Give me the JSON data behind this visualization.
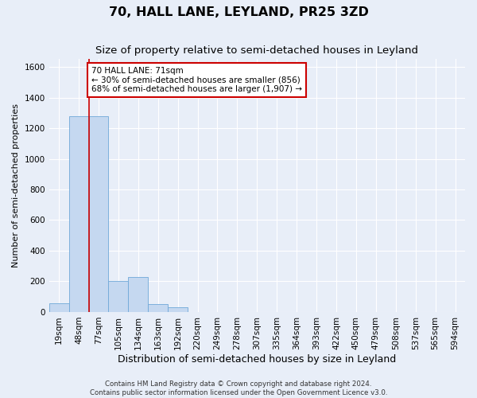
{
  "title": "70, HALL LANE, LEYLAND, PR25 3ZD",
  "subtitle": "Size of property relative to semi-detached houses in Leyland",
  "xlabel": "Distribution of semi-detached houses by size in Leyland",
  "ylabel": "Number of semi-detached properties",
  "footer_line1": "Contains HM Land Registry data © Crown copyright and database right 2024.",
  "footer_line2": "Contains public sector information licensed under the Open Government Licence v3.0.",
  "bin_labels": [
    "19sqm",
    "48sqm",
    "77sqm",
    "105sqm",
    "134sqm",
    "163sqm",
    "192sqm",
    "220sqm",
    "249sqm",
    "278sqm",
    "307sqm",
    "335sqm",
    "364sqm",
    "393sqm",
    "422sqm",
    "450sqm",
    "479sqm",
    "508sqm",
    "537sqm",
    "565sqm",
    "594sqm"
  ],
  "bar_values": [
    55,
    1280,
    1280,
    200,
    230,
    50,
    30,
    0,
    0,
    0,
    0,
    0,
    0,
    0,
    0,
    0,
    0,
    0,
    0,
    0,
    0
  ],
  "bar_color": "#c5d8f0",
  "bar_edge_color": "#6fa8d8",
  "property_line_color": "#cc0000",
  "property_line_xbin": 2,
  "annotation_text": "70 HALL LANE: 71sqm\n← 30% of semi-detached houses are smaller (856)\n68% of semi-detached houses are larger (1,907) →",
  "annotation_box_color": "white",
  "annotation_box_edge_color": "#cc0000",
  "ylim": [
    0,
    1650
  ],
  "yticks": [
    0,
    200,
    400,
    600,
    800,
    1000,
    1200,
    1400,
    1600
  ],
  "background_color": "#e8eef8",
  "grid_color": "#ffffff",
  "title_fontsize": 11.5,
  "subtitle_fontsize": 9.5,
  "xlabel_fontsize": 9,
  "ylabel_fontsize": 8,
  "tick_fontsize": 7.5,
  "annotation_fontsize": 7.5,
  "footer_fontsize": 6.2
}
